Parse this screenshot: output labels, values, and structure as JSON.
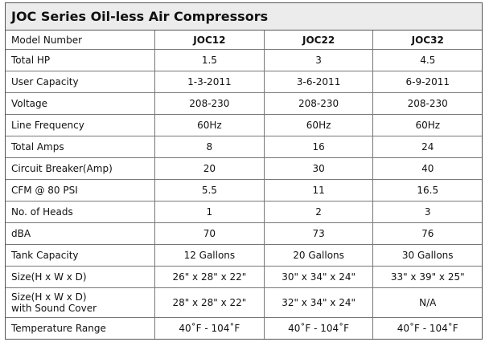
{
  "header": {
    "title": "JOC Series Oil-less Air Compressors"
  },
  "table": {
    "columns": [
      "Model Number",
      "JOC12",
      "JOC22",
      "JOC32"
    ],
    "rows": [
      [
        "Total HP",
        "1.5",
        "3",
        "4.5"
      ],
      [
        "User Capacity",
        "1-3-2011",
        "3-6-2011",
        "6-9-2011"
      ],
      [
        "Voltage",
        "208-230",
        "208-230",
        "208-230"
      ],
      [
        "Line Frequency",
        "60Hz",
        "60Hz",
        "60Hz"
      ],
      [
        "Total Amps",
        "8",
        "16",
        "24"
      ],
      [
        "Circuit Breaker(Amp)",
        "20",
        "30",
        "40"
      ],
      [
        "CFM @ 80 PSI",
        "5.5",
        "11",
        "16.5"
      ],
      [
        "No. of Heads",
        "1",
        "2",
        "3"
      ],
      [
        "dBA",
        "70",
        "73",
        "76"
      ],
      [
        "Tank Capacity",
        "12 Gallons",
        "20 Gallons",
        "30 Gallons"
      ],
      [
        "Size(H x W x D)",
        "26\" x 28\" x 22\"",
        "30\" x 34\" x 24\"",
        "33\" x 39\" x 25\""
      ],
      [
        "Size(H x W x D)\nwith Sound Cover",
        "28\" x 28\" x 22\"",
        "32\" x 34\" x 24\"",
        "N/A"
      ],
      [
        "Temperature Range",
        "40˚F - 104˚F",
        "40˚F - 104˚F",
        "40˚F - 104˚F"
      ]
    ]
  }
}
